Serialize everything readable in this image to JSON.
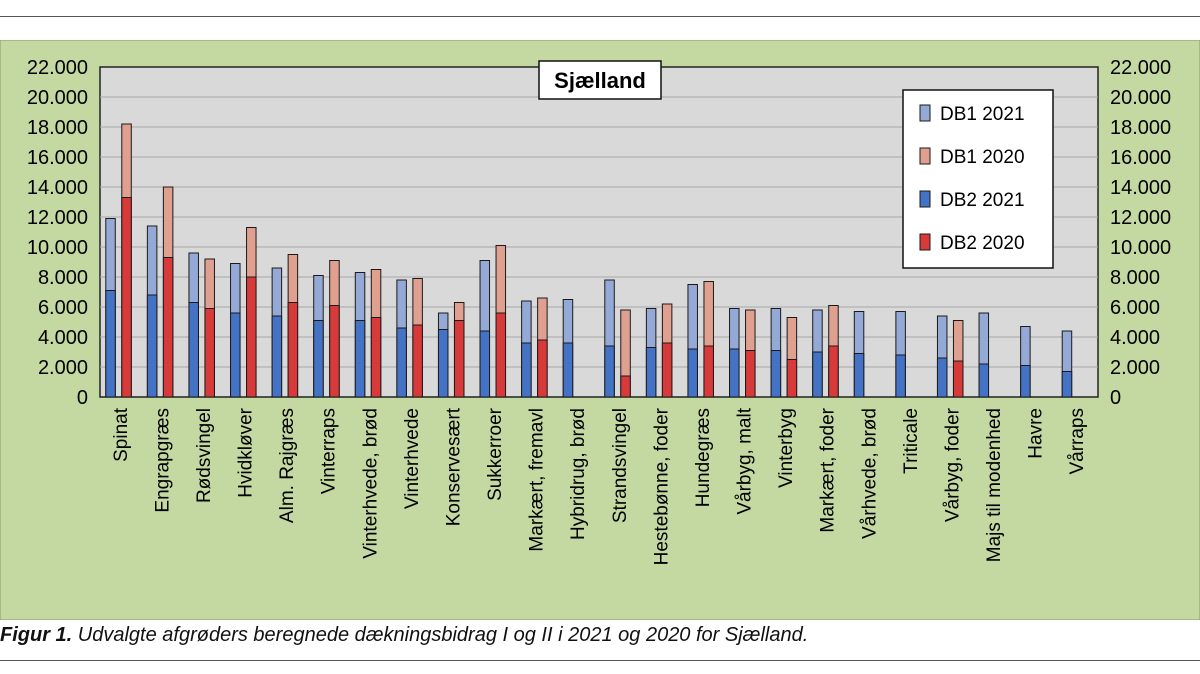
{
  "caption": {
    "label": "Figur 1.",
    "text": "Udvalgte afgrøders beregnede dækningsbidrag I og II i 2021 og 2020 for Sjælland."
  },
  "chart_data": {
    "type": "bar",
    "title": "Sjælland",
    "xlabel": "",
    "ylabel": "",
    "ylim": [
      0,
      22000
    ],
    "yticks": [
      "0",
      "2.000",
      "4.000",
      "6.000",
      "8.000",
      "10.000",
      "12.000",
      "14.000",
      "16.000",
      "18.000",
      "20.000",
      "22.000"
    ],
    "grid": true,
    "legend_position": "top-right",
    "categories": [
      "Spinat",
      "Engrapgræs",
      "Rødsvingel",
      "Hvidkløver",
      "Alm. Rajgræs",
      "Vinterraps",
      "Vinterhvede, brød",
      "Vinterhvede",
      "Konservesært",
      "Sukkerroer",
      "Markært, fremavl",
      "Hybridrug, brød",
      "Strandsvingel",
      "Hestebønne, foder",
      "Hundegræs",
      "Vårbyg, malt",
      "Vinterbyg",
      "Markært, foder",
      "Vårhvede, brød",
      "Triticale",
      "Vårbyg, foder",
      "Majs til modenhed",
      "Havre",
      "Vårraps"
    ],
    "series": [
      {
        "name": "DB1 2021",
        "color": "#94a9d6",
        "values": [
          11900,
          11400,
          9600,
          8900,
          8600,
          8100,
          8300,
          7800,
          5600,
          9100,
          6400,
          6500,
          7800,
          5900,
          7500,
          5900,
          5900,
          5800,
          5700,
          5700,
          5400,
          5600,
          4700,
          4400
        ]
      },
      {
        "name": "DB1 2020",
        "color": "#e0a090",
        "values": [
          18200,
          14000,
          9200,
          11300,
          9500,
          9100,
          8500,
          7900,
          6300,
          10100,
          6600,
          null,
          5800,
          6200,
          7700,
          5800,
          5300,
          6100,
          null,
          null,
          5100,
          null,
          null,
          null
        ]
      },
      {
        "name": "DB2 2021",
        "color": "#4472c4",
        "values": [
          7100,
          6800,
          6300,
          5600,
          5400,
          5100,
          5100,
          4600,
          4500,
          4400,
          3600,
          3600,
          3400,
          3300,
          3200,
          3200,
          3100,
          3000,
          2900,
          2800,
          2600,
          2200,
          2100,
          1700
        ]
      },
      {
        "name": "DB2 2020",
        "color": "#d83a3a",
        "values": [
          13300,
          9300,
          5900,
          8000,
          6300,
          6100,
          5300,
          4800,
          5100,
          5600,
          3800,
          null,
          1400,
          3600,
          3400,
          3100,
          2500,
          3400,
          null,
          null,
          2400,
          null,
          null,
          null
        ]
      }
    ]
  }
}
